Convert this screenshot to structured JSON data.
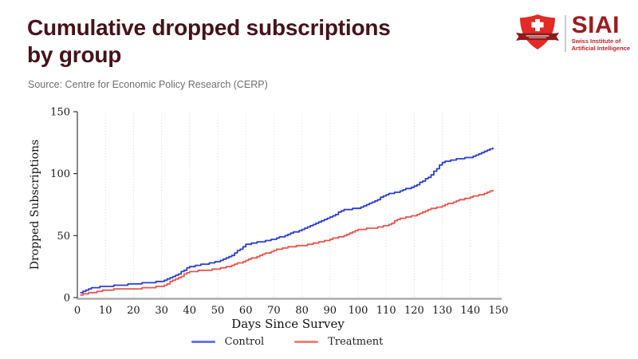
{
  "header": {
    "title_line1": "Cumulative dropped subscriptions",
    "title_line2": "by group",
    "source": "Source: Centre for Economic Policy Research (CERP)"
  },
  "logo": {
    "wordmark": "SIAI",
    "subtitle_line1": "Swiss Institute of",
    "subtitle_line2": "Artificial Intelligence"
  },
  "colors": {
    "title": "#45121B",
    "source": "#6F6F6F",
    "grid": "#D8D8D8",
    "axis-y": "#111111",
    "axis-x": "#ABABAB",
    "tick-text": "#1A1A1A",
    "legend-control": "#6C76DB",
    "legend-treatment": "#F08178",
    "logo-red": "#E22B27",
    "logo-dark-red": "#9C1B20",
    "logo-sub-red": "#BE2328",
    "logo-banner": "#8E1A1C"
  },
  "chart_data": {
    "type": "line",
    "subtype": "cumulative-step",
    "title": "",
    "xlabel": "Days Since Survey",
    "ylabel": "Dropped Subscriptions",
    "xlim": [
      0,
      150
    ],
    "ylim": [
      0,
      150
    ],
    "xticks": [
      0,
      10,
      20,
      30,
      40,
      50,
      60,
      70,
      80,
      90,
      100,
      110,
      120,
      130,
      140,
      150
    ],
    "yticks": [
      0,
      50,
      100,
      150
    ],
    "grid": "vertical-dotted",
    "legend_position": "bottom-center",
    "x": [
      1,
      5,
      10,
      15,
      20,
      25,
      30,
      35,
      40,
      45,
      50,
      55,
      60,
      65,
      70,
      75,
      80,
      85,
      90,
      95,
      100,
      105,
      110,
      115,
      120,
      125,
      130,
      135,
      140,
      145,
      148
    ],
    "series": [
      {
        "name": "Control",
        "color": "#2C3ED1",
        "values": [
          4,
          8,
          9,
          10,
          11,
          12,
          13,
          18,
          25,
          27,
          29,
          34,
          43,
          45,
          47,
          51,
          55,
          60,
          65,
          71,
          72,
          77,
          83,
          86,
          90,
          97,
          109,
          112,
          113,
          118,
          121
        ]
      },
      {
        "name": "Treatment",
        "color": "#E6564C",
        "values": [
          2,
          4,
          6,
          7,
          7,
          8,
          9,
          15,
          21,
          22,
          23,
          26,
          30,
          34,
          38,
          41,
          42,
          44,
          47,
          50,
          55,
          56,
          58,
          64,
          66,
          71,
          74,
          78,
          81,
          84,
          87
        ]
      }
    ]
  }
}
